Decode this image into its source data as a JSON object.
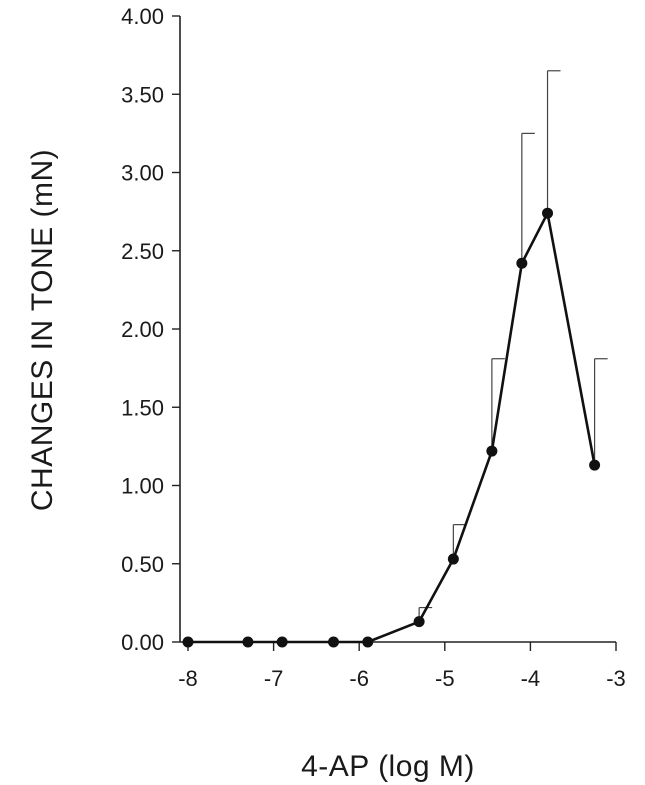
{
  "chart_data": {
    "type": "line",
    "title": "",
    "xlabel": "4-AP (log M)",
    "ylabel": "CHANGES IN TONE (mN)",
    "xlim": [
      -8,
      -3
    ],
    "ylim": [
      0,
      4
    ],
    "x_ticks": [
      "-8",
      "-7",
      "-6",
      "-5",
      "-4",
      "-3"
    ],
    "y_ticks": [
      "0.00",
      "0.50",
      "1.00",
      "1.50",
      "2.00",
      "2.50",
      "3.00",
      "3.50",
      "4.00"
    ],
    "grid": false,
    "series": [
      {
        "x": [
          -8.0,
          -7.3,
          -6.9,
          -6.3,
          -5.9,
          -5.3,
          -4.9,
          -4.45,
          -4.1,
          -3.8,
          -3.25
        ],
        "y": [
          0.0,
          0.0,
          0.0,
          0.0,
          0.0,
          0.13,
          0.53,
          1.22,
          2.42,
          2.74,
          1.13
        ],
        "error_upper": [
          null,
          null,
          null,
          null,
          null,
          0.22,
          0.75,
          1.81,
          3.25,
          3.65,
          1.81
        ],
        "color": "#111111"
      }
    ]
  }
}
